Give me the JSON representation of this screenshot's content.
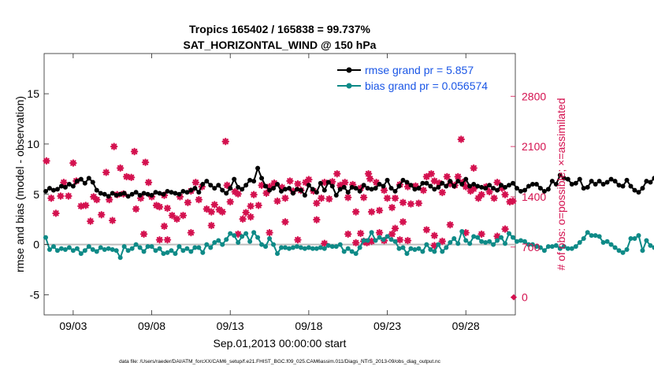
{
  "chart_data": {
    "type": "line",
    "title_line1": "Tropics 165402 / 165838 = 99.737%",
    "title_line2": "SAT_HORIZONTAL_WIND @ 150 hPa",
    "xlabel": "Sep.01,2013 00:00:00 start",
    "ylabel_left": "rmse and bias (model - observation)",
    "ylabel_right": "# of obs: o=possible; ×=assimilated",
    "footer": "data file: /Users/raeder/DAI/ATM_forcXX/CAM6_setup/f.e21.FHIST_BGC.f09_025.CAM6assim.011/Diags_NTrS_2013-09/obs_diag_output.nc",
    "x_ticks": [
      "09/03",
      "09/08",
      "09/13",
      "09/18",
      "09/23",
      "09/28"
    ],
    "x_tick_days": [
      3,
      8,
      13,
      18,
      23,
      28
    ],
    "x_range_days": [
      1.15,
      31.15
    ],
    "ylim_left": [
      -7,
      19
    ],
    "yticks_left": [
      "-5",
      "0",
      "5",
      "10",
      "15"
    ],
    "yticks_left_values": [
      -5,
      0,
      5,
      10,
      15
    ],
    "ylim_right": [
      -245,
      3395
    ],
    "yticks_right": [
      "0",
      "700",
      "1400",
      "2100",
      "2800"
    ],
    "yticks_right_values": [
      0,
      700,
      1400,
      2100,
      2800
    ],
    "colors": {
      "rmse": "#000000",
      "bias": "#0e8a87",
      "obs": "#d4114f",
      "zero": "#bdbdbd",
      "legend_text": "#1a56e6"
    },
    "series": [
      {
        "name": "rmse grand pr = 5.857",
        "start_day": 1.25,
        "step_days": 0.25,
        "values": [
          5.3,
          5.6,
          5.4,
          5.5,
          5.8,
          5.7,
          6.0,
          5.8,
          6.3,
          6.5,
          6.1,
          6.6,
          6.2,
          5.4,
          5.1,
          5.0,
          4.8,
          5.1,
          4.9,
          5.0,
          5.1,
          4.8,
          5.0,
          5.2,
          4.9,
          5.1,
          5.0,
          4.9,
          5.2,
          5.1,
          5.0,
          5.3,
          5.2,
          5.1,
          5.0,
          5.3,
          5.2,
          5.4,
          5.6,
          5.2,
          6.0,
          6.3,
          5.9,
          5.6,
          5.9,
          5.4,
          5.1,
          5.6,
          6.5,
          5.7,
          5.5,
          5.9,
          6.4,
          6.3,
          7.6,
          6.6,
          5.8,
          5.4,
          5.6,
          6.0,
          5.3,
          5.5,
          5.6,
          5.1,
          5.5,
          5.4,
          4.9,
          5.9,
          5.5,
          5.2,
          6.1,
          5.4,
          6.2,
          5.8,
          4.9,
          5.5,
          5.7,
          5.2,
          5.7,
          5.6,
          5.3,
          5.9,
          5.6,
          5.5,
          5.6,
          6.0,
          5.8,
          6.4,
          5.6,
          5.3,
          5.8,
          6.4,
          6.2,
          5.9,
          5.5,
          5.6,
          6.1,
          6.1,
          5.8,
          5.5,
          5.7,
          6.1,
          5.8,
          6.3,
          5.8,
          6.3,
          6.0,
          6.5,
          5.8,
          6.0,
          5.8,
          5.7,
          5.6,
          5.9,
          5.6,
          5.4,
          5.9,
          5.7,
          5.9,
          6.1,
          5.6,
          5.3,
          5.4,
          5.8,
          6.0,
          6.0,
          5.6,
          5.3,
          5.5,
          6.3,
          6.0,
          6.9,
          6.6,
          6.5,
          6.0,
          6.1,
          6.5,
          5.6,
          5.7,
          6.3,
          6.0,
          6.3,
          6.0,
          6.2,
          6.5,
          6.3,
          5.9,
          5.8,
          6.4,
          5.8,
          5.4,
          5.2,
          5.6,
          6.3,
          6.2,
          6.6,
          6.1,
          5.7,
          5.1,
          6.0,
          5.7,
          5.4,
          5.5,
          5.5,
          5.7,
          6.0,
          6.2,
          5.6,
          6.1,
          5.8,
          6.4,
          7.5,
          6.8,
          6.5,
          5.8,
          6.6,
          6.2,
          5.9,
          6.9,
          6.0,
          5.5,
          5.6,
          6.3,
          6.0,
          6.0,
          6.1,
          6.1,
          5.6,
          5.8,
          6.1,
          5.5,
          5.9,
          5.7,
          6.3,
          6.2,
          5.8,
          6.0,
          6.2,
          6.5,
          6.3,
          6.3,
          6.9,
          6.7,
          6.2,
          5.6
        ],
        "marker": "circle"
      },
      {
        "name": "bias grand pr = 0.056574",
        "start_day": 1.25,
        "step_days": 0.25,
        "values": [
          0.7,
          -0.5,
          -0.2,
          -0.6,
          -0.4,
          -0.5,
          -0.3,
          -0.6,
          -0.4,
          -0.9,
          -0.6,
          -0.2,
          -0.5,
          -0.7,
          -0.3,
          -0.5,
          -0.4,
          -0.5,
          -0.6,
          -1.3,
          -0.2,
          -0.6,
          -0.4,
          0.0,
          -0.3,
          -0.7,
          -0.2,
          -0.2,
          -0.6,
          -0.4,
          -0.9,
          -0.8,
          -0.6,
          -0.9,
          -0.2,
          -0.6,
          -0.4,
          -0.7,
          -0.3,
          -0.3,
          -0.8,
          0.0,
          -0.3,
          0.2,
          0.4,
          0.0,
          0.5,
          1.1,
          0.9,
          0.2,
          0.8,
          1.1,
          0.3,
          1.2,
          0.7,
          0.0,
          -0.2,
          0.6,
          0.0,
          -0.9,
          -0.3,
          -0.3,
          -0.4,
          -0.3,
          -0.2,
          -0.3,
          -0.4,
          -0.3,
          -0.4,
          -0.4,
          -0.3,
          -0.4,
          -0.1,
          -0.2,
          -0.2,
          0.0,
          -0.7,
          -0.4,
          -0.7,
          -0.9,
          -0.3,
          0.4,
          0.4,
          1.2,
          0.4,
          0.7,
          0.5,
          0.8,
          0.5,
          0.3,
          -0.4,
          -0.3,
          -0.9,
          -0.4,
          -0.5,
          -0.4,
          -0.7,
          0.0,
          -0.5,
          -0.7,
          0.0,
          -0.7,
          -0.3,
          0.2,
          0.6,
          0.1,
          1.3,
          0.4,
          0.1,
          0.8,
          0.7,
          0.3,
          0.2,
          0.3,
          0.0,
          0.4,
          0.7,
          0.1,
          1.1,
          0.7,
          0.3,
          0.4,
          0.3,
          0.0,
          0.0,
          -0.2,
          -0.3,
          -0.6,
          -0.2,
          -0.2,
          -0.1,
          -0.4,
          -0.2,
          -0.4,
          -0.4,
          -0.2,
          0.2,
          0.6,
          1.2,
          0.9,
          0.9,
          0.8,
          0.2,
          0.3,
          0.0,
          -0.3,
          -0.6,
          -0.8,
          -0.5,
          0.6,
          0.6,
          0.9,
          -0.6,
          0.4,
          -0.1,
          -0.3,
          -0.7,
          -0.3,
          -0.4,
          -0.4,
          0.0,
          -0.2,
          -0.1,
          -0.8,
          -0.4,
          -0.6,
          -0.2,
          -0.3,
          -0.3,
          -0.1,
          -0.9,
          -0.2,
          -0.6,
          -0.6,
          -0.8,
          -0.5,
          -0.3,
          -0.5,
          -0.3,
          -0.2,
          -0.5,
          -0.6,
          -0.4,
          -0.4,
          -0.1,
          -0.6,
          -0.5,
          -0.6,
          -0.6,
          -0.4,
          -0.4,
          -0.4,
          -0.4,
          -0.2,
          -0.6,
          -0.9,
          -1.0,
          -0.9,
          -1.2,
          -0.7,
          -0.9,
          -1.0,
          -1.0,
          -1.2,
          -1.0,
          -1.2,
          -1.5,
          -1.1,
          -1.9,
          -2.1,
          -2.1,
          -1.6
        ],
        "marker": "circle"
      },
      {
        "name": "# of obs (assimilated)",
        "axis": "right",
        "marker": "asterisk",
        "points": [
          [
            1.3,
            1900
          ],
          [
            1.6,
            1380
          ],
          [
            1.9,
            1170
          ],
          [
            2.2,
            1410
          ],
          [
            2.4,
            1600
          ],
          [
            2.7,
            1410
          ],
          [
            3.0,
            1870
          ],
          [
            3.2,
            1620
          ],
          [
            3.5,
            1270
          ],
          [
            3.8,
            1280
          ],
          [
            4.1,
            1060
          ],
          [
            4.3,
            1400
          ],
          [
            4.5,
            1360
          ],
          [
            4.8,
            1150
          ],
          [
            5.1,
            1740
          ],
          [
            5.3,
            1360
          ],
          [
            5.5,
            1070
          ],
          [
            5.8,
            1430
          ],
          [
            6.0,
            1800
          ],
          [
            6.2,
            1440
          ],
          [
            6.4,
            1680
          ],
          [
            6.7,
            1670
          ],
          [
            6.9,
            2030
          ],
          [
            7.0,
            1230
          ],
          [
            7.3,
            1380
          ],
          [
            7.6,
            1880
          ],
          [
            7.8,
            1600
          ],
          [
            8.0,
            1400
          ],
          [
            8.3,
            1280
          ],
          [
            8.5,
            1260
          ],
          [
            8.8,
            1420
          ],
          [
            9.0,
            1240
          ],
          [
            9.3,
            1140
          ],
          [
            9.6,
            1090
          ],
          [
            9.8,
            1400
          ],
          [
            10.0,
            1140
          ],
          [
            10.3,
            1320
          ],
          [
            10.5,
            1480
          ],
          [
            10.8,
            1600
          ],
          [
            11.0,
            1360
          ],
          [
            11.2,
            1540
          ],
          [
            11.5,
            1230
          ],
          [
            11.8,
            1190
          ],
          [
            12.0,
            1290
          ],
          [
            12.3,
            1220
          ],
          [
            12.5,
            1190
          ],
          [
            12.8,
            1560
          ],
          [
            13.0,
            1330
          ],
          [
            13.3,
            1470
          ],
          [
            13.5,
            1440
          ],
          [
            13.8,
            1090
          ],
          [
            14.0,
            1180
          ],
          [
            14.3,
            1270
          ],
          [
            14.5,
            1430
          ],
          [
            14.8,
            1280
          ],
          [
            15.0,
            1560
          ],
          [
            15.3,
            1450
          ],
          [
            15.5,
            1540
          ],
          [
            15.8,
            1590
          ],
          [
            16.0,
            1340
          ],
          [
            16.3,
            1530
          ],
          [
            16.5,
            1380
          ],
          [
            16.8,
            1620
          ],
          [
            17.0,
            1480
          ],
          [
            17.3,
            1580
          ],
          [
            17.5,
            1490
          ],
          [
            17.8,
            1600
          ],
          [
            18.0,
            1640
          ],
          [
            18.3,
            1480
          ],
          [
            18.5,
            1310
          ],
          [
            18.8,
            1380
          ],
          [
            19.0,
            1600
          ],
          [
            19.3,
            1370
          ],
          [
            19.5,
            1610
          ],
          [
            19.8,
            1720
          ],
          [
            20.0,
            1560
          ],
          [
            20.3,
            1600
          ],
          [
            20.5,
            1390
          ],
          [
            20.8,
            1570
          ],
          [
            21.0,
            1190
          ],
          [
            21.3,
            1520
          ],
          [
            21.5,
            1390
          ],
          [
            21.8,
            1720
          ],
          [
            22.0,
            1190
          ],
          [
            22.3,
            1600
          ],
          [
            22.5,
            1210
          ],
          [
            22.8,
            1490
          ],
          [
            23.0,
            1380
          ],
          [
            23.3,
            1250
          ],
          [
            23.5,
            1380
          ],
          [
            23.8,
            1570
          ],
          [
            24.0,
            1320
          ],
          [
            24.3,
            1540
          ],
          [
            24.5,
            1300
          ],
          [
            24.8,
            1550
          ],
          [
            25.0,
            1310
          ],
          [
            25.3,
            1490
          ],
          [
            25.5,
            1680
          ],
          [
            25.8,
            1720
          ],
          [
            26.0,
            1620
          ],
          [
            26.3,
            1590
          ],
          [
            26.5,
            1460
          ],
          [
            26.8,
            1680
          ],
          [
            27.0,
            1580
          ],
          [
            27.3,
            1560
          ],
          [
            27.5,
            1680
          ],
          [
            27.8,
            1600
          ],
          [
            28.0,
            1540
          ],
          [
            28.3,
            1480
          ],
          [
            28.5,
            1510
          ],
          [
            28.8,
            1380
          ],
          [
            29.0,
            1430
          ],
          [
            29.3,
            1540
          ],
          [
            29.5,
            1470
          ],
          [
            29.8,
            1380
          ],
          [
            30.0,
            1600
          ],
          [
            30.3,
            1520
          ],
          [
            30.5,
            1430
          ],
          [
            30.8,
            1330
          ],
          [
            31.0,
            1340
          ],
          [
            5.6,
            2100
          ],
          [
            12.7,
            2170
          ],
          [
            27.7,
            2200
          ],
          [
            28.5,
            1800
          ],
          [
            21.9,
            1650
          ]
        ]
      },
      {
        "name": "# of obs (possible)",
        "axis": "right",
        "marker": "diamond",
        "points": [
          [
            31.05,
            0
          ]
        ]
      }
    ],
    "obs_cluster_points": [
      [
        21.0,
        760
      ],
      [
        21.3,
        890
      ],
      [
        21.5,
        780
      ],
      [
        21.7,
        760
      ],
      [
        22.0,
        780
      ],
      [
        22.5,
        900
      ],
      [
        22.8,
        790
      ],
      [
        23.3,
        880
      ],
      [
        23.8,
        800
      ],
      [
        24.3,
        790
      ],
      [
        25.5,
        940
      ],
      [
        26.0,
        860
      ],
      [
        26.5,
        780
      ],
      [
        9.0,
        800
      ],
      [
        8.8,
        990
      ],
      [
        13.5,
        880
      ],
      [
        15.5,
        900
      ],
      [
        17.3,
        800
      ],
      [
        19.0,
        750
      ],
      [
        20.5,
        880
      ],
      [
        23.5,
        960
      ],
      [
        24.0,
        1050
      ],
      [
        7.5,
        880
      ],
      [
        8.5,
        800
      ],
      [
        10.5,
        900
      ],
      [
        11.8,
        1000
      ],
      [
        14.3,
        1120
      ],
      [
        16.5,
        1050
      ],
      [
        18.5,
        1080
      ],
      [
        30.0,
        850
      ],
      [
        30.5,
        950
      ],
      [
        29.0,
        880
      ],
      [
        28.0,
        900
      ],
      [
        26.0,
        720
      ],
      [
        27.0,
        1010
      ]
    ]
  }
}
